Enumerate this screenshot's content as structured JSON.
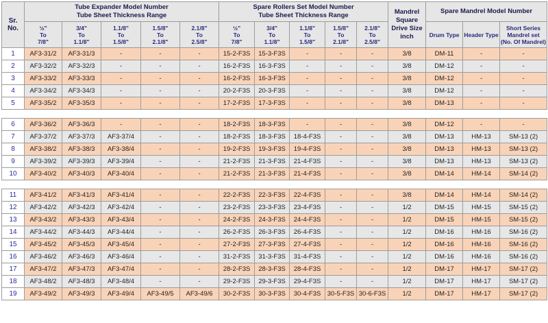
{
  "header": {
    "sr_no": "Sr.\nNo.",
    "expander_title": "Tube Expander Model Number\nTube Sheet Thickness Range",
    "rollers_title": "Spare Rollers Set Model Number\nTube Sheet Thickness Range",
    "mandrel_drive": "Mandrel\nSquare\nDrive Size\ninch",
    "spare_mandrel_title": "Spare Mandrel Model Number",
    "ranges": [
      "½\"\nTo\n7/8\"",
      "3/4\"\nTo\n1.1/8\"",
      "1.1/8\"\nTo\n1.5/8\"",
      "1.5/8\"\nTo\n2.1/8\"",
      "2.1/8\"\nTo\n2.5/8\""
    ],
    "drum_type": "Drum Type",
    "header_type": "Header Type",
    "short_series": "Short Series\nMandrel set\n(No. Of Mandrel)"
  },
  "groups": [
    {
      "rows": [
        {
          "sr": "1",
          "e": [
            "AF3-31/2",
            "AF3-31/3",
            "-",
            "-",
            "-"
          ],
          "r": [
            "15-2-F3S",
            "15-3-F3S",
            "-",
            "-",
            "-"
          ],
          "drive": "3/8",
          "drum": "DM-11",
          "hdr": "-",
          "short": "-"
        },
        {
          "sr": "2",
          "e": [
            "AF3-32/2",
            "AF3-32/3",
            "-",
            "-",
            "-"
          ],
          "r": [
            "16-2-F3S",
            "16-3-F3S",
            "-",
            "-",
            "-"
          ],
          "drive": "3/8",
          "drum": "DM-12",
          "hdr": "-",
          "short": "-"
        },
        {
          "sr": "3",
          "e": [
            "AF3-33/2",
            "AF3-33/3",
            "-",
            "-",
            "-"
          ],
          "r": [
            "16-2-F3S",
            "16-3-F3S",
            "-",
            "-",
            "-"
          ],
          "drive": "3/8",
          "drum": "DM-12",
          "hdr": "-",
          "short": "-"
        },
        {
          "sr": "4",
          "e": [
            "AF3-34/2",
            "AF3-34/3",
            "-",
            "-",
            "-"
          ],
          "r": [
            "20-2-F3S",
            "20-3-F3S",
            "-",
            "-",
            "-"
          ],
          "drive": "3/8",
          "drum": "DM-12",
          "hdr": "-",
          "short": "-"
        },
        {
          "sr": "5",
          "e": [
            "AF3-35/2",
            "AF3-35/3",
            "-",
            "-",
            "-"
          ],
          "r": [
            "17-2-F3S",
            "17-3-F3S",
            "-",
            "-",
            "-"
          ],
          "drive": "3/8",
          "drum": "DM-13",
          "hdr": "-",
          "short": "-"
        }
      ]
    },
    {
      "rows": [
        {
          "sr": "6",
          "e": [
            "AF3-36/2",
            "AF3-36/3",
            "-",
            "-",
            "-"
          ],
          "r": [
            "18-2-F3S",
            "18-3-F3S",
            "-",
            "-",
            "-"
          ],
          "drive": "3/8",
          "drum": "DM-12",
          "hdr": "-",
          "short": "-"
        },
        {
          "sr": "7",
          "e": [
            "AF3-37/2",
            "AF3-37/3",
            "AF3-37/4",
            "-",
            "-"
          ],
          "r": [
            "18-2-F3S",
            "18-3-F3S",
            "18-4-F3S",
            "-",
            "-"
          ],
          "drive": "3/8",
          "drum": "DM-13",
          "hdr": "HM-13",
          "short": "SM-13 (2)"
        },
        {
          "sr": "8",
          "e": [
            "AF3-38/2",
            "AF3-38/3",
            "AF3-38/4",
            "-",
            "-"
          ],
          "r": [
            "19-2-F3S",
            "19-3-F3S",
            "19-4-F3S",
            "-",
            "-"
          ],
          "drive": "3/8",
          "drum": "DM-13",
          "hdr": "HM-13",
          "short": "SM-13 (2)"
        },
        {
          "sr": "9",
          "e": [
            "AF3-39/2",
            "AF3-39/3",
            "AF3-39/4",
            "-",
            "-"
          ],
          "r": [
            "21-2-F3S",
            "21-3-F3S",
            "21-4-F3S",
            "-",
            "-"
          ],
          "drive": "3/8",
          "drum": "DM-13",
          "hdr": "HM-13",
          "short": "SM-13 (2)"
        },
        {
          "sr": "10",
          "e": [
            "AF3-40/2",
            "AF3-40/3",
            "AF3-40/4",
            "-",
            "-"
          ],
          "r": [
            "21-2-F3S",
            "21-3-F3S",
            "21-4-F3S",
            "-",
            "-"
          ],
          "drive": "3/8",
          "drum": "DM-14",
          "hdr": "HM-14",
          "short": "SM-14 (2)"
        }
      ]
    },
    {
      "rows": [
        {
          "sr": "11",
          "e": [
            "AF3-41/2",
            "AF3-41/3",
            "AF3-41/4",
            "-",
            "-"
          ],
          "r": [
            "22-2-F3S",
            "22-3-F3S",
            "22-4-F3S",
            "-",
            "-"
          ],
          "drive": "3/8",
          "drum": "DM-14",
          "hdr": "HM-14",
          "short": "SM-14 (2)"
        },
        {
          "sr": "12",
          "e": [
            "AF3-42/2",
            "AF3-42/3",
            "AF3-42/4",
            "-",
            "-"
          ],
          "r": [
            "23-2-F3S",
            "23-3-F3S",
            "23-4-F3S",
            "-",
            "-"
          ],
          "drive": "1/2",
          "drum": "DM-15",
          "hdr": "HM-15",
          "short": "SM-15 (2)"
        },
        {
          "sr": "13",
          "e": [
            "AF3-43/2",
            "AF3-43/3",
            "AF3-43/4",
            "-",
            "-"
          ],
          "r": [
            "24-2-F3S",
            "24-3-F3S",
            "24-4-F3S",
            "-",
            "-"
          ],
          "drive": "1/2",
          "drum": "DM-15",
          "hdr": "HM-15",
          "short": "SM-15 (2)"
        },
        {
          "sr": "14",
          "e": [
            "AF3-44/2",
            "AF3-44/3",
            "AF3-44/4",
            "-",
            "-"
          ],
          "r": [
            "26-2-F3S",
            "26-3-F3S",
            "26-4-F3S",
            "-",
            "-"
          ],
          "drive": "1/2",
          "drum": "DM-16",
          "hdr": "HM-16",
          "short": "SM-16 (2)"
        },
        {
          "sr": "15",
          "e": [
            "AF3-45/2",
            "AF3-45/3",
            "AF3-45/4",
            "-",
            "-"
          ],
          "r": [
            "27-2-F3S",
            "27-3-F3S",
            "27-4-F3S",
            "-",
            "-"
          ],
          "drive": "1/2",
          "drum": "DM-16",
          "hdr": "HM-16",
          "short": "SM-16 (2)"
        },
        {
          "sr": "16",
          "e": [
            "AF3-46/2",
            "AF3-46/3",
            "AF3-46/4",
            "-",
            "-"
          ],
          "r": [
            "31-2-F3S",
            "31-3-F3S",
            "31-4-F3S",
            "-",
            "-"
          ],
          "drive": "1/2",
          "drum": "DM-16",
          "hdr": "HM-16",
          "short": "SM-16 (2)"
        },
        {
          "sr": "17",
          "e": [
            "AF3-47/2",
            "AF3-47/3",
            "AF3-47/4",
            "-",
            "-"
          ],
          "r": [
            "28-2-F3S",
            "28-3-F3S",
            "28-4-F3S",
            "-",
            "-"
          ],
          "drive": "1/2",
          "drum": "DM-17",
          "hdr": "HM-17",
          "short": "SM-17 (2)"
        },
        {
          "sr": "18",
          "e": [
            "AF3-48/2",
            "AF3-48/3",
            "AF3-48/4",
            "-",
            "-"
          ],
          "r": [
            "29-2-F3S",
            "29-3-F3S",
            "29-4-F3S",
            "-",
            "-"
          ],
          "drive": "1/2",
          "drum": "DM-17",
          "hdr": "HM-17",
          "short": "SM-17 (2)"
        },
        {
          "sr": "19",
          "e": [
            "AF3-49/2",
            "AF3-49/3",
            "AF3-49/4",
            "AF3-49/5",
            "AF3-49/6"
          ],
          "r": [
            "30-2-F3S",
            "30-3-F3S",
            "30-4-F3S",
            "30-5-F3S",
            "30-6-F3S"
          ],
          "drive": "1/2",
          "drum": "DM-17",
          "hdr": "HM-17",
          "short": "SM-17 (2)"
        }
      ]
    }
  ]
}
